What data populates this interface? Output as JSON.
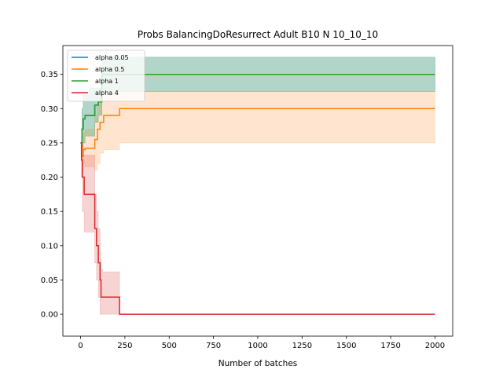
{
  "chart_data": {
    "type": "line",
    "title": "Probs BalancingDoResurrect Adult B10 N 10_10_10",
    "xlabel": "Number of batches",
    "ylabel": "",
    "xlim": [
      -100,
      2100
    ],
    "ylim": [
      -0.032,
      0.392
    ],
    "x_ticks": [
      0,
      250,
      500,
      750,
      1000,
      1250,
      1500,
      1750,
      2000
    ],
    "y_ticks": [
      0.0,
      0.05,
      0.1,
      0.15,
      0.2,
      0.25,
      0.3,
      0.35
    ],
    "x_tick_labels": [
      "0",
      "250",
      "500",
      "750",
      "1000",
      "1250",
      "1500",
      "1750",
      "2000"
    ],
    "y_tick_labels": [
      "0.00",
      "0.05",
      "0.10",
      "0.15",
      "0.20",
      "0.25",
      "0.30",
      "0.35"
    ],
    "grid": false,
    "legend_position": "top-left",
    "series": [
      {
        "name": "alpha 0.05",
        "color": "#1f77b4",
        "x": [
          0,
          8,
          15,
          25,
          50,
          80,
          100,
          120,
          2000
        ],
        "y": [
          0.25,
          0.27,
          0.285,
          0.29,
          0.29,
          0.305,
          0.31,
          0.35,
          0.35
        ],
        "lower": [
          0.25,
          0.24,
          0.25,
          0.26,
          0.26,
          0.28,
          0.29,
          0.325,
          0.325
        ],
        "upper": [
          0.25,
          0.3,
          0.32,
          0.32,
          0.33,
          0.33,
          0.33,
          0.375,
          0.375
        ]
      },
      {
        "name": "alpha 0.5",
        "color": "#ff7f0e",
        "x": [
          0,
          8,
          15,
          25,
          80,
          95,
          110,
          130,
          220,
          2000
        ],
        "y": [
          0.25,
          0.23,
          0.24,
          0.242,
          0.255,
          0.27,
          0.28,
          0.29,
          0.3,
          0.3
        ],
        "lower": [
          0.25,
          0.21,
          0.22,
          0.215,
          0.21,
          0.22,
          0.235,
          0.24,
          0.25,
          0.25
        ],
        "upper": [
          0.25,
          0.25,
          0.265,
          0.27,
          0.29,
          0.305,
          0.315,
          0.32,
          0.325,
          0.325
        ]
      },
      {
        "name": "alpha 1",
        "color": "#2ca02c",
        "x": [
          0,
          8,
          15,
          25,
          50,
          80,
          100,
          120,
          2000
        ],
        "y": [
          0.25,
          0.27,
          0.285,
          0.29,
          0.29,
          0.305,
          0.31,
          0.35,
          0.35
        ],
        "lower": [
          0.25,
          0.24,
          0.25,
          0.26,
          0.26,
          0.28,
          0.29,
          0.325,
          0.325
        ],
        "upper": [
          0.25,
          0.3,
          0.32,
          0.32,
          0.33,
          0.33,
          0.33,
          0.375,
          0.375
        ]
      },
      {
        "name": "alpha 4",
        "color": "#d62728",
        "x": [
          0,
          5,
          10,
          20,
          80,
          90,
          100,
          110,
          115,
          125,
          130,
          220,
          2000
        ],
        "y": [
          0.25,
          0.225,
          0.2,
          0.175,
          0.125,
          0.1,
          0.075,
          0.05,
          0.025,
          0.025,
          0.025,
          0.0,
          0.0
        ],
        "lower": [
          0.25,
          0.2,
          0.15,
          0.12,
          0.075,
          0.05,
          0.025,
          0.0,
          0.0,
          0.0,
          0.0,
          0.0,
          0.0
        ],
        "upper": [
          0.25,
          0.245,
          0.232,
          0.232,
          0.175,
          0.15,
          0.125,
          0.09,
          0.065,
          0.062,
          0.062,
          0.0,
          0.0
        ]
      }
    ]
  }
}
